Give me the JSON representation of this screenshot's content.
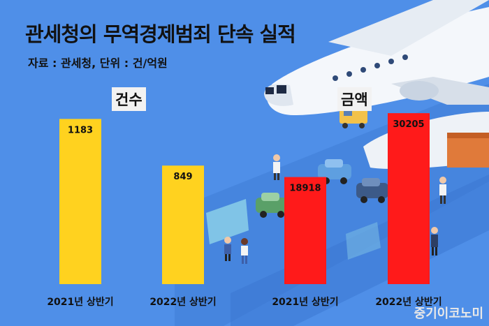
{
  "header": {
    "title": "관세청의 무역경제범죄 단속 실적",
    "subtitle": "자료 : 관세청, 단위 : 건/억원"
  },
  "groups": {
    "count_label": "건수",
    "amount_label": "금액"
  },
  "watermark": "중기이코노미",
  "colors": {
    "background": "#4f8fe8",
    "count_bar": "#ffd21f",
    "amount_bar": "#ff1a1a"
  },
  "chart_data": [
    {
      "type": "bar",
      "title": "건수",
      "categories": [
        "2021년 상반기",
        "2022년 상반기"
      ],
      "values": [
        1183,
        849
      ],
      "ylim": [
        0,
        1500
      ]
    },
    {
      "type": "bar",
      "title": "금액",
      "categories": [
        "2021년 상반기",
        "2022년 상반기"
      ],
      "values": [
        18918,
        30205
      ],
      "ylim": [
        0,
        37000
      ]
    }
  ]
}
